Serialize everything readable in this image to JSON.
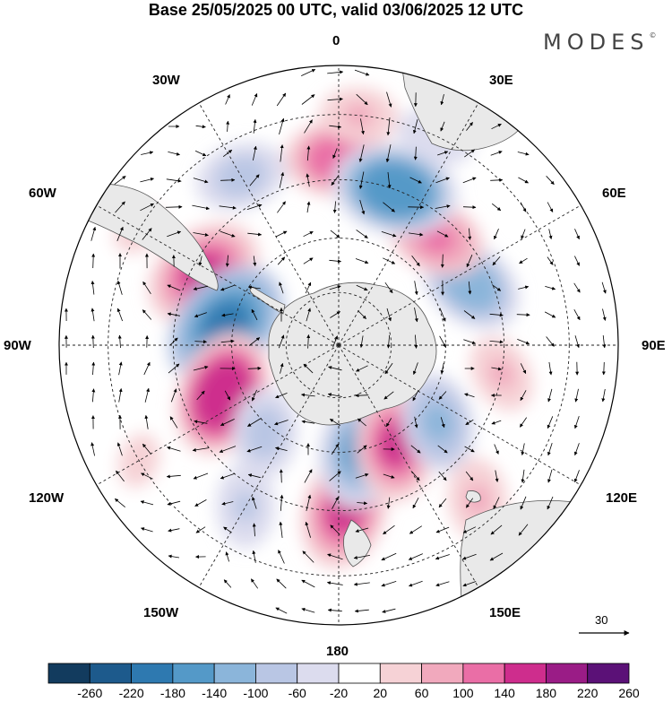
{
  "title": "Base 25/05/2025 00 UTC, valid 03/06/2025 12 UTC",
  "brand": {
    "name": "MODES",
    "mark": "©"
  },
  "lon_labels": {
    "l0": "0",
    "l30e": "30E",
    "l60e": "60E",
    "l90e": "90E",
    "l120e": "120E",
    "l150e": "150E",
    "l180": "180",
    "l150w": "150W",
    "l120w": "120W",
    "l90w": "90W",
    "l60w": "60W",
    "l30w": "30W"
  },
  "vector_scale": "30",
  "colorbar": {
    "ticks": [
      "-260",
      "-220",
      "-180",
      "-140",
      "-100",
      "-60",
      "-20",
      "20",
      "60",
      "100",
      "140",
      "180",
      "220",
      "260"
    ],
    "colors": [
      "#123b5e",
      "#1d5a8c",
      "#2e79b0",
      "#5499c8",
      "#8bb5da",
      "#b9c6e4",
      "#dcdcee",
      "#ffffff",
      "#f6d2d6",
      "#f1a9bd",
      "#ea6ea6",
      "#ce2d8d",
      "#9a1c86",
      "#5b1177"
    ]
  },
  "map": {
    "projection": "south-polar-stereographic",
    "land_color": "#e9e9e9",
    "coast_color": "#555555",
    "grid_color": "#222222",
    "anomalies": [
      {
        "lon": 0,
        "lat": -40,
        "value": 130
      },
      {
        "lon": 5,
        "lat": -30,
        "value": 60
      },
      {
        "lon": -30,
        "lat": -38,
        "value": -90
      },
      {
        "lon": -62,
        "lat": -48,
        "value": 160
      },
      {
        "lon": -80,
        "lat": -58,
        "value": -190
      },
      {
        "lon": -113,
        "lat": -55,
        "value": 170
      },
      {
        "lon": -140,
        "lat": -58,
        "value": -90
      },
      {
        "lon": -150,
        "lat": -40,
        "value": -70
      },
      {
        "lon": 178,
        "lat": -45,
        "value": 150
      },
      {
        "lon": 168,
        "lat": -60,
        "value": -150
      },
      {
        "lon": 150,
        "lat": -58,
        "value": 140
      },
      {
        "lon": 128,
        "lat": -55,
        "value": -110
      },
      {
        "lon": 138,
        "lat": -35,
        "value": 70
      },
      {
        "lon": 100,
        "lat": -45,
        "value": 60
      },
      {
        "lon": 65,
        "lat": -50,
        "value": -130
      },
      {
        "lon": 42,
        "lat": -50,
        "value": 110
      },
      {
        "lon": 20,
        "lat": -45,
        "value": -170
      },
      {
        "lon": 25,
        "lat": -30,
        "value": -60
      },
      {
        "lon": -120,
        "lat": -30,
        "value": 40
      },
      {
        "lon": -60,
        "lat": -30,
        "value": 40
      }
    ]
  }
}
